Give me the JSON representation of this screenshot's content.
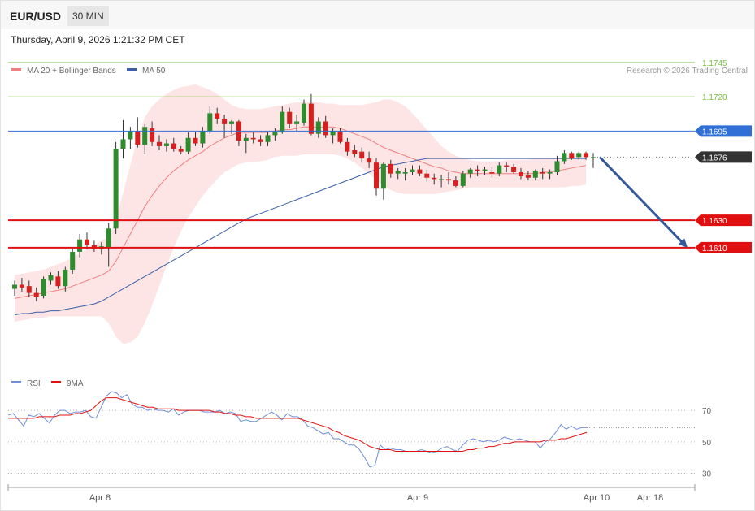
{
  "header": {
    "symbol": "EUR/USD",
    "timeframe": "30 MIN",
    "datetime": "Thursday, April 9, 2026 1:21:32 PM CET"
  },
  "legend": {
    "ma20_label": "MA 20 + Bollinger Bands",
    "ma50_label": "MA 50",
    "copyright": "Research © 2026 Trading Central",
    "rsi_label": "RSI",
    "rsi_ma_label": "9MA"
  },
  "colors": {
    "up": "#2e8b2e",
    "down": "#d62020",
    "ma20": "#f08080",
    "ma50": "#3a5fa8",
    "bands": "#fde0e0",
    "resistance": "#7cc140",
    "pivot": "#2f6fd6",
    "support": "#e01010",
    "current": "#333333",
    "arrow": "#34589a",
    "rsi": "#6f8fd8",
    "rsi_ma": "#e01010"
  },
  "chart_data": {
    "type": "candlestick",
    "ylim": [
      1.153,
      1.1755
    ],
    "price_levels": [
      {
        "value": 1.1745,
        "label": "1.1745",
        "kind": "resistance"
      },
      {
        "value": 1.172,
        "label": "1.1720",
        "kind": "resistance"
      },
      {
        "value": 1.1695,
        "label": "1.1695",
        "kind": "pivot"
      },
      {
        "value": 1.1676,
        "label": "1.1676",
        "kind": "current"
      },
      {
        "value": 1.163,
        "label": "1.1630",
        "kind": "support"
      },
      {
        "value": 1.161,
        "label": "1.1610",
        "kind": "support"
      }
    ],
    "forecast_arrow": {
      "from": 1.1676,
      "to": 1.161
    },
    "x_labels": [
      "Apr 8",
      "Apr 9",
      "Apr 10",
      "Apr 18"
    ],
    "candles": [
      [
        1.158,
        1.1586,
        1.1575,
        1.1583
      ],
      [
        1.1583,
        1.1588,
        1.1578,
        1.1581
      ],
      [
        1.1582,
        1.1586,
        1.1574,
        1.1577
      ],
      [
        1.1577,
        1.1581,
        1.1571,
        1.1574
      ],
      [
        1.1575,
        1.1589,
        1.1573,
        1.1587
      ],
      [
        1.1586,
        1.1592,
        1.1583,
        1.159
      ],
      [
        1.1589,
        1.1593,
        1.158,
        1.1582
      ],
      [
        1.1582,
        1.1596,
        1.1578,
        1.1594
      ],
      [
        1.1594,
        1.161,
        1.1591,
        1.1607
      ],
      [
        1.1607,
        1.162,
        1.1603,
        1.1616
      ],
      [
        1.1616,
        1.1621,
        1.1609,
        1.1612
      ],
      [
        1.1612,
        1.1615,
        1.1607,
        1.1609
      ],
      [
        1.1609,
        1.1614,
        1.1605,
        1.1611
      ],
      [
        1.161,
        1.1628,
        1.1596,
        1.1624
      ],
      [
        1.1624,
        1.1687,
        1.162,
        1.1682
      ],
      [
        1.1682,
        1.1703,
        1.1675,
        1.1689
      ],
      [
        1.1689,
        1.1698,
        1.1682,
        1.1695
      ],
      [
        1.1695,
        1.1705,
        1.1683,
        1.1685
      ],
      [
        1.1685,
        1.17,
        1.1678,
        1.1698
      ],
      [
        1.1697,
        1.1702,
        1.1684,
        1.1687
      ],
      [
        1.1687,
        1.1692,
        1.1681,
        1.1684
      ],
      [
        1.1684,
        1.1689,
        1.168,
        1.1686
      ],
      [
        1.1686,
        1.169,
        1.168,
        1.1682
      ],
      [
        1.1682,
        1.1684,
        1.1678,
        1.168
      ],
      [
        1.168,
        1.1694,
        1.1678,
        1.169
      ],
      [
        1.169,
        1.1694,
        1.1684,
        1.1686
      ],
      [
        1.1686,
        1.1698,
        1.1683,
        1.1695
      ],
      [
        1.1695,
        1.1713,
        1.1693,
        1.1708
      ],
      [
        1.1708,
        1.1712,
        1.17,
        1.1704
      ],
      [
        1.1704,
        1.1707,
        1.169,
        1.17
      ],
      [
        1.17,
        1.1703,
        1.1693,
        1.1702
      ],
      [
        1.1702,
        1.1703,
        1.1684,
        1.1688
      ],
      [
        1.1688,
        1.1693,
        1.1679,
        1.169
      ],
      [
        1.169,
        1.1694,
        1.1686,
        1.1689
      ],
      [
        1.1689,
        1.1692,
        1.1684,
        1.1687
      ],
      [
        1.1687,
        1.1694,
        1.1684,
        1.1692
      ],
      [
        1.1692,
        1.1697,
        1.1688,
        1.1694
      ],
      [
        1.1694,
        1.1713,
        1.1693,
        1.1709
      ],
      [
        1.1709,
        1.1712,
        1.1697,
        1.17
      ],
      [
        1.17,
        1.1707,
        1.1694,
        1.1702
      ],
      [
        1.1701,
        1.1718,
        1.1699,
        1.1715
      ],
      [
        1.1715,
        1.1722,
        1.1692,
        1.1693
      ],
      [
        1.1693,
        1.1705,
        1.169,
        1.1702
      ],
      [
        1.1702,
        1.1706,
        1.169,
        1.1692
      ],
      [
        1.1692,
        1.1697,
        1.1686,
        1.1695
      ],
      [
        1.1695,
        1.1697,
        1.1686,
        1.1687
      ],
      [
        1.1687,
        1.169,
        1.1677,
        1.168
      ],
      [
        1.1681,
        1.1685,
        1.1676,
        1.1678
      ],
      [
        1.168,
        1.1683,
        1.1672,
        1.1675
      ],
      [
        1.1675,
        1.168,
        1.1668,
        1.1672
      ],
      [
        1.1672,
        1.1675,
        1.1648,
        1.1653
      ],
      [
        1.1653,
        1.1672,
        1.1645,
        1.1671
      ],
      [
        1.1671,
        1.1674,
        1.1661,
        1.1664
      ],
      [
        1.1664,
        1.1668,
        1.166,
        1.1666
      ],
      [
        1.1664,
        1.1668,
        1.1659,
        1.1665
      ],
      [
        1.1665,
        1.167,
        1.1663,
        1.1667
      ],
      [
        1.1667,
        1.167,
        1.1662,
        1.1664
      ],
      [
        1.1664,
        1.1667,
        1.1658,
        1.1661
      ],
      [
        1.1661,
        1.1664,
        1.1656,
        1.166
      ],
      [
        1.166,
        1.1663,
        1.1654,
        1.166
      ],
      [
        1.166,
        1.1665,
        1.1656,
        1.1659
      ],
      [
        1.1659,
        1.1662,
        1.1654,
        1.1655
      ],
      [
        1.1655,
        1.1666,
        1.1654,
        1.1664
      ],
      [
        1.1664,
        1.1668,
        1.1661,
        1.1667
      ],
      [
        1.1667,
        1.167,
        1.1662,
        1.1666
      ],
      [
        1.1666,
        1.1669,
        1.1663,
        1.1667
      ],
      [
        1.1665,
        1.1669,
        1.1661,
        1.1664
      ],
      [
        1.1664,
        1.1672,
        1.1662,
        1.167
      ],
      [
        1.167,
        1.1672,
        1.1665,
        1.1669
      ],
      [
        1.1669,
        1.1671,
        1.1664,
        1.1665
      ],
      [
        1.1665,
        1.1668,
        1.166,
        1.1662
      ],
      [
        1.1663,
        1.1666,
        1.1659,
        1.1661
      ],
      [
        1.1661,
        1.1667,
        1.1659,
        1.1666
      ],
      [
        1.1665,
        1.1668,
        1.166,
        1.1664
      ],
      [
        1.1664,
        1.1667,
        1.166,
        1.1665
      ],
      [
        1.1665,
        1.1677,
        1.1663,
        1.1673
      ],
      [
        1.1673,
        1.1681,
        1.1671,
        1.1679
      ],
      [
        1.1679,
        1.168,
        1.1674,
        1.1675
      ],
      [
        1.1676,
        1.168,
        1.1674,
        1.1679
      ],
      [
        1.1679,
        1.168,
        1.1674,
        1.1676
      ],
      [
        1.1676,
        1.1679,
        1.1668,
        1.1676
      ]
    ],
    "ma20": [
      1.1573,
      1.1574,
      1.1575,
      1.1576,
      1.1577,
      1.1578,
      1.1579,
      1.158,
      1.1582,
      1.1584,
      1.1586,
      1.1588,
      1.159,
      1.1593,
      1.16,
      1.161,
      1.162,
      1.163,
      1.164,
      1.1648,
      1.1655,
      1.1661,
      1.1666,
      1.167,
      1.1674,
      1.1677,
      1.168,
      1.1684,
      1.1687,
      1.169,
      1.1692,
      1.1694,
      1.1694,
      1.1694,
      1.1694,
      1.1694,
      1.1695,
      1.1696,
      1.1696,
      1.1697,
      1.1698,
      1.1698,
      1.1698,
      1.1698,
      1.1698,
      1.1697,
      1.1695,
      1.1693,
      1.1691,
      1.1689,
      1.1686,
      1.1683,
      1.1681,
      1.1679,
      1.1677,
      1.1675,
      1.1673,
      1.1671,
      1.1669,
      1.1668,
      1.1666,
      1.1665,
      1.1664,
      1.1664,
      1.1664,
      1.1664,
      1.1664,
      1.1664,
      1.1664,
      1.1664,
      1.1664,
      1.1664,
      1.1664,
      1.1665,
      1.1665,
      1.1666,
      1.1667,
      1.1668,
      1.1669,
      1.167
    ],
    "ma50": [
      1.1561,
      1.1562,
      1.1562,
      1.1563,
      1.1563,
      1.1564,
      1.1564,
      1.1565,
      1.1566,
      1.1567,
      1.1568,
      1.1569,
      1.1571,
      1.1574,
      1.1577,
      1.158,
      1.1583,
      1.1586,
      1.1589,
      1.1592,
      1.1595,
      1.1598,
      1.1601,
      1.1604,
      1.1607,
      1.161,
      1.1613,
      1.1616,
      1.1619,
      1.1622,
      1.1625,
      1.1628,
      1.1631,
      1.1633,
      1.1635,
      1.1637,
      1.1639,
      1.1641,
      1.1643,
      1.1645,
      1.1647,
      1.1649,
      1.1651,
      1.1653,
      1.1655,
      1.1657,
      1.1659,
      1.1661,
      1.1663,
      1.1665,
      1.1667,
      1.1669,
      1.167,
      1.1671,
      1.1672,
      1.1673,
      1.1674,
      1.1675,
      1.1675,
      1.1675,
      1.1675,
      1.1675,
      1.1675,
      1.1675,
      1.1675,
      1.1675,
      1.1675,
      1.1675,
      1.1675,
      1.1675,
      1.1675,
      1.1675,
      1.1675,
      1.1675,
      1.1675,
      1.1675,
      1.1675,
      1.1675,
      1.1675,
      1.1675
    ],
    "bb_upper": [
      1.159,
      1.1591,
      1.1592,
      1.1593,
      1.1594,
      1.1596,
      1.1598,
      1.16,
      1.1603,
      1.1606,
      1.1609,
      1.1612,
      1.1615,
      1.1618,
      1.163,
      1.165,
      1.167,
      1.169,
      1.1705,
      1.1713,
      1.1718,
      1.1722,
      1.1725,
      1.1727,
      1.1728,
      1.1729,
      1.1727,
      1.1725,
      1.1722,
      1.1718,
      1.1714,
      1.1712,
      1.1711,
      1.1711,
      1.1711,
      1.1712,
      1.1713,
      1.1714,
      1.1715,
      1.1716,
      1.1716,
      1.1716,
      1.1716,
      1.1715,
      1.1715,
      1.1714,
      1.1714,
      1.1714,
      1.1714,
      1.1715,
      1.1716,
      1.1718,
      1.1718,
      1.1716,
      1.1713,
      1.1708,
      1.1702,
      1.1696,
      1.169,
      1.1684,
      1.168,
      1.1677,
      1.1675,
      1.1674,
      1.1673,
      1.1673,
      1.1673,
      1.1673,
      1.1674,
      1.1674,
      1.1674,
      1.1674,
      1.1675,
      1.1675,
      1.1675,
      1.1675,
      1.1676,
      1.1677,
      1.1678,
      1.1679
    ],
    "bb_lower": [
      1.1556,
      1.1557,
      1.1558,
      1.1559,
      1.1559,
      1.156,
      1.156,
      1.156,
      1.156,
      1.156,
      1.156,
      1.156,
      1.156,
      1.1555,
      1.1545,
      1.154,
      1.1541,
      1.1545,
      1.1555,
      1.1568,
      1.1582,
      1.1597,
      1.161,
      1.1622,
      1.1632,
      1.164,
      1.1648,
      1.1654,
      1.166,
      1.1665,
      1.1668,
      1.1671,
      1.1672,
      1.1672,
      1.1673,
      1.1674,
      1.1676,
      1.1677,
      1.1677,
      1.1677,
      1.1678,
      1.1678,
      1.1678,
      1.1678,
      1.1678,
      1.1677,
      1.1675,
      1.1672,
      1.1668,
      1.1664,
      1.1659,
      1.1655,
      1.1652,
      1.165,
      1.1649,
      1.1649,
      1.1649,
      1.1649,
      1.1649,
      1.165,
      1.1651,
      1.1652,
      1.1653,
      1.1654,
      1.1654,
      1.1654,
      1.1654,
      1.1654,
      1.1654,
      1.1654,
      1.1654,
      1.1654,
      1.1654,
      1.1654,
      1.1654,
      1.1654,
      1.1654,
      1.1655,
      1.1655,
      1.1656
    ],
    "rsi": {
      "ylim": [
        22,
        83
      ],
      "levels": [
        70,
        50,
        30
      ],
      "level_labels": [
        "70",
        "50",
        "30"
      ],
      "current": 59,
      "rsi": [
        67,
        68,
        64,
        60,
        67,
        66,
        68,
        65,
        62,
        67,
        70,
        70,
        68,
        69,
        69,
        70,
        66,
        65,
        72,
        79,
        82,
        81,
        78,
        80,
        74,
        72,
        72,
        70,
        71,
        70,
        70,
        69,
        71,
        67,
        69,
        70,
        70,
        70,
        69,
        69,
        69,
        70,
        68,
        69,
        68,
        63,
        64,
        63,
        63,
        65,
        67,
        69,
        67,
        64,
        68,
        66,
        66,
        64,
        60,
        59,
        57,
        55,
        56,
        52,
        52,
        50,
        48,
        48,
        45,
        40,
        34,
        35,
        48,
        45,
        46,
        45,
        45,
        44,
        44,
        44,
        45,
        44,
        43,
        44,
        46,
        47,
        45,
        44,
        48,
        51,
        52,
        51,
        50,
        51,
        50,
        51,
        53,
        52,
        51,
        52,
        51,
        50,
        50,
        46,
        50,
        52,
        56,
        61,
        58,
        60,
        58,
        59,
        59
      ],
      "rsi_ma": [
        65,
        65,
        65,
        65,
        65,
        65,
        66,
        66,
        66,
        66,
        67,
        67,
        67,
        68,
        68,
        69,
        70,
        73,
        76,
        78,
        78,
        78,
        77,
        76,
        75,
        74,
        73,
        72,
        72,
        71,
        71,
        71,
        71,
        70,
        70,
        70,
        70,
        70,
        70,
        70,
        69,
        69,
        68,
        68,
        67,
        67,
        66,
        66,
        65,
        65,
        65,
        65,
        65,
        65,
        65,
        65,
        65,
        64,
        63,
        62,
        61,
        60,
        59,
        57,
        56,
        54,
        53,
        52,
        51,
        49,
        47,
        46,
        45,
        45,
        45,
        44,
        44,
        44,
        44,
        44,
        44,
        44,
        44,
        44,
        44,
        44,
        44,
        44,
        44,
        45,
        45,
        46,
        46,
        47,
        47,
        48,
        49,
        49,
        50,
        50,
        50,
        50,
        50,
        50,
        51,
        51,
        51,
        52,
        52,
        53,
        54,
        55,
        56
      ]
    }
  }
}
